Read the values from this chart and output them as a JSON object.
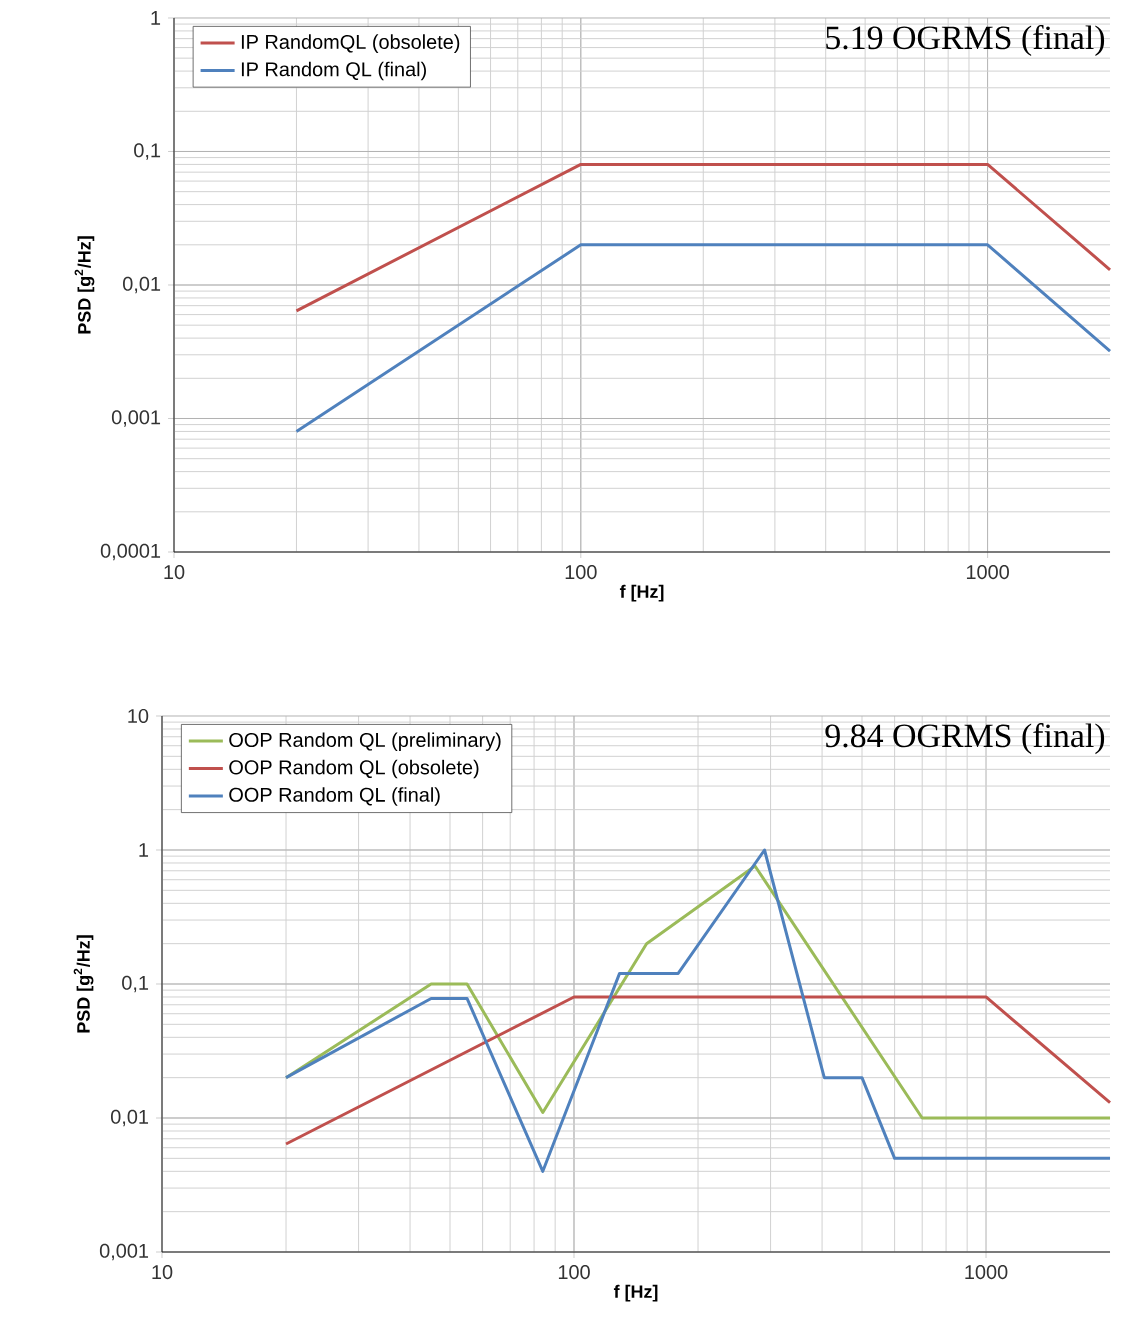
{
  "chart_data": [
    {
      "type": "line",
      "xlabel": "f [Hz]",
      "ylabel": "PSD [g$^{2}$/Hz]",
      "annotations": [
        "5.19 OGRMS (final)"
      ],
      "log": "xy",
      "grid": true,
      "legend": "top left",
      "xlim": [
        10,
        2000
      ],
      "xticks": [
        10,
        100,
        1000
      ],
      "ylim": [
        0.0001,
        1
      ],
      "yticks": [
        {
          "value": 0.0001,
          "label": "0,0001"
        },
        {
          "value": 0.001,
          "label": "0,001"
        },
        {
          "value": 0.01,
          "label": "0,01"
        },
        {
          "value": 0.1,
          "label": "0,1"
        },
        1
      ],
      "series": [
        {
          "name": "IP RandomQL (obsolete)",
          "color": "#c0504d",
          "x": [
            20,
            100,
            1000,
            2000
          ],
          "values": [
            0.0064,
            0.08,
            0.08,
            0.013
          ]
        },
        {
          "name": "IP Random QL (final)",
          "color": "#4f81bd",
          "x": [
            20,
            100,
            1000,
            2000
          ],
          "values": [
            0.0008,
            0.02,
            0.02,
            0.0032
          ]
        }
      ]
    },
    {
      "type": "line",
      "xlabel": "f [Hz]",
      "ylabel": "PSD [g$^{2}$/Hz]",
      "annotations": [
        "9.84 OGRMS (final)"
      ],
      "log": "xy",
      "grid": true,
      "legend": "top left",
      "xlim": [
        10,
        2000
      ],
      "xticks": [
        10,
        100,
        1000
      ],
      "ylim": [
        0.001,
        10
      ],
      "yticks": [
        {
          "value": 0.001,
          "label": "0,001"
        },
        {
          "value": 0.01,
          "label": "0,01"
        },
        {
          "value": 0.1,
          "label": "0,1"
        },
        1,
        10
      ],
      "series": [
        {
          "name": "OOP Random QL (preliminary)",
          "color": "#9bbb59",
          "x": [
            20,
            45,
            55,
            84,
            150,
            275,
            700,
            2000
          ],
          "values": [
            0.02,
            0.1,
            0.1,
            0.011,
            0.2,
            0.76,
            0.01,
            0.01
          ]
        },
        {
          "name": "OOP Random QL (obsolete)",
          "color": "#c0504d",
          "x": [
            20,
            100,
            1000,
            2000
          ],
          "values": [
            0.0064,
            0.08,
            0.08,
            0.013
          ]
        },
        {
          "name": "OOP Random QL (final)",
          "color": "#4f81bd",
          "x": [
            20,
            45,
            55,
            84,
            129,
            179,
            290,
            405,
            500,
            600,
            2000
          ],
          "values": [
            0.02,
            0.078,
            0.078,
            0.004,
            0.12,
            0.12,
            1.0,
            0.02,
            0.02,
            0.005,
            0.005
          ]
        }
      ]
    }
  ]
}
